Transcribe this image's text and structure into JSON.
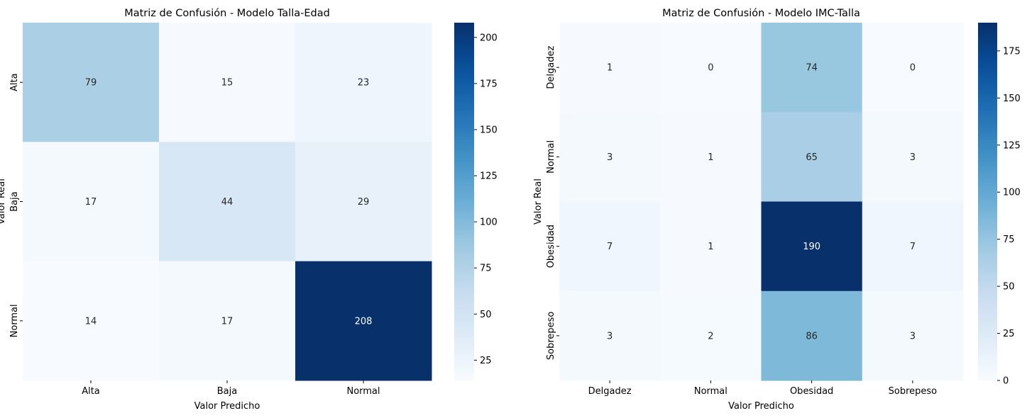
{
  "chart_data": [
    {
      "type": "heatmap",
      "title": "Matriz de Confusión - Modelo Talla-Edad",
      "xlabel": "Valor Predicho",
      "ylabel": "Valor Real",
      "x_categories": [
        "Alta",
        "Baja",
        "Normal"
      ],
      "y_categories": [
        "Alta",
        "Baja",
        "Normal"
      ],
      "values": [
        [
          79,
          15,
          23
        ],
        [
          17,
          44,
          29
        ],
        [
          14,
          17,
          208
        ]
      ],
      "colormap": "Blues",
      "color_range": [
        14,
        208
      ],
      "colorbar_ticks": [
        25,
        50,
        75,
        100,
        125,
        150,
        175,
        200
      ]
    },
    {
      "type": "heatmap",
      "title": "Matriz de Confusión - Modelo IMC-Talla",
      "xlabel": "Valor Predicho",
      "ylabel": "Valor Real",
      "x_categories": [
        "Delgadez",
        "Normal",
        "Obesidad",
        "Sobrepeso"
      ],
      "y_categories": [
        "Delgadez",
        "Normal",
        "Obesidad",
        "Sobrepeso"
      ],
      "values": [
        [
          1,
          0,
          74,
          0
        ],
        [
          3,
          1,
          65,
          3
        ],
        [
          7,
          1,
          190,
          7
        ],
        [
          3,
          2,
          86,
          3
        ]
      ],
      "colormap": "Blues",
      "color_range": [
        0,
        190
      ],
      "colorbar_ticks": [
        0,
        25,
        50,
        75,
        100,
        125,
        150,
        175
      ]
    }
  ]
}
